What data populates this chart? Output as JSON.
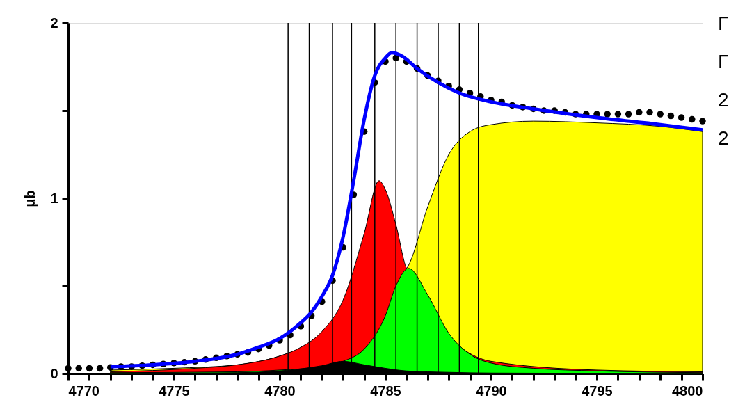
{
  "chart_data": {
    "type": "area",
    "ylabel": "μb",
    "xlim": [
      4770,
      4800
    ],
    "ylim": [
      0,
      2
    ],
    "xticks": [
      4770,
      {
        "value": 4771,
        "label": null
      },
      {
        "value": 4772,
        "label": null
      },
      {
        "value": 4773,
        "label": null
      },
      {
        "value": 4774,
        "label": null
      },
      4775,
      {
        "value": 4776,
        "label": null
      },
      {
        "value": 4777,
        "label": null
      },
      {
        "value": 4778,
        "label": null
      },
      {
        "value": 4779,
        "label": null
      },
      4780,
      {
        "value": 4781,
        "label": null
      },
      {
        "value": 4782,
        "label": null
      },
      {
        "value": 4783,
        "label": null
      },
      {
        "value": 4784,
        "label": null
      },
      4785,
      {
        "value": 4786,
        "label": null
      },
      {
        "value": 4787,
        "label": null
      },
      {
        "value": 4788,
        "label": null
      },
      {
        "value": 4789,
        "label": null
      },
      4790,
      {
        "value": 4791,
        "label": null
      },
      {
        "value": 4792,
        "label": null
      },
      {
        "value": 4793,
        "label": null
      },
      {
        "value": 4794,
        "label": null
      },
      4795,
      {
        "value": 4796,
        "label": null
      },
      {
        "value": 4797,
        "label": null
      },
      {
        "value": 4798,
        "label": null
      },
      {
        "value": 4799,
        "label": null
      },
      4800
    ],
    "yticks": [
      0,
      {
        "value": 0.5,
        "label": null
      },
      1,
      {
        "value": 1.5,
        "label": null
      },
      2
    ],
    "grid": false,
    "annotations": [
      "Γ",
      "Γ",
      "2",
      "2"
    ],
    "ref_lines": [
      {
        "axis": "x",
        "value": 4780.4,
        "color": "#000000"
      },
      {
        "axis": "x",
        "value": 4781.4,
        "color": "#000000"
      },
      {
        "axis": "x",
        "value": 4782.5,
        "color": "#000000"
      },
      {
        "axis": "x",
        "value": 4783.4,
        "color": "#000000"
      },
      {
        "axis": "x",
        "value": 4784.5,
        "color": "#000000"
      },
      {
        "axis": "x",
        "value": 4785.5,
        "color": "#000000"
      },
      {
        "axis": "x",
        "value": 4786.5,
        "color": "#000000"
      },
      {
        "axis": "x",
        "value": 4787.5,
        "color": "#000000"
      },
      {
        "axis": "x",
        "value": 4788.5,
        "color": "#000000"
      },
      {
        "axis": "x",
        "value": 4789.4,
        "color": "#000000"
      }
    ],
    "series": [
      {
        "color": "#ffff00",
        "x": [
          4772,
          4775,
          4778,
          4786,
          4787,
          4788,
          4789,
          4790,
          4792,
          4795,
          4798,
          4800
        ],
        "values": [
          0.02,
          0.03,
          0.05,
          0.6,
          0.95,
          1.25,
          1.38,
          1.42,
          1.44,
          1.43,
          1.41,
          1.38
        ]
      },
      {
        "color": "#ff0000",
        "x": [
          4772,
          4776,
          4778,
          4780,
          4781,
          4782,
          4783,
          4784,
          4784.7,
          4785,
          4785.5,
          4786,
          4790,
          4795,
          4800
        ],
        "values": [
          0.01,
          0.03,
          0.05,
          0.1,
          0.15,
          0.24,
          0.42,
          0.8,
          1.1,
          1.05,
          0.85,
          0.6,
          0.07,
          0.02,
          0.01
        ]
      },
      {
        "color": "#00ff00",
        "x": [
          4772,
          4778,
          4780,
          4782,
          4783,
          4784,
          4785,
          4785.5,
          4786.1,
          4787,
          4788,
          4789,
          4790,
          4792,
          4795,
          4800
        ],
        "values": [
          0.005,
          0.01,
          0.02,
          0.04,
          0.07,
          0.14,
          0.33,
          0.5,
          0.6,
          0.45,
          0.23,
          0.11,
          0.06,
          0.03,
          0.015,
          0.005
        ]
      },
      {
        "color": "#000000",
        "x": [
          4772,
          4778,
          4780,
          4782,
          4783,
          4784,
          4785,
          4786,
          4788,
          4790,
          4800
        ],
        "values": [
          0.0,
          0.005,
          0.015,
          0.045,
          0.07,
          0.05,
          0.03,
          0.015,
          0.007,
          0.003,
          0.0
        ]
      },
      {
        "type": "scatter",
        "color": "#000000",
        "marker": "circle",
        "x": [
          4770,
          4770.5,
          4771,
          4771.5,
          4772,
          4772.5,
          4773,
          4773.5,
          4774,
          4774.5,
          4775,
          4775.5,
          4776,
          4776.5,
          4777,
          4777.5,
          4778,
          4778.5,
          4779,
          4779.5,
          4780,
          4780.5,
          4781,
          4781.5,
          4782,
          4782.5,
          4783,
          4783.5,
          4784,
          4784.5,
          4785,
          4785.5,
          4786,
          4786.5,
          4787,
          4787.5,
          4788,
          4788.5,
          4789,
          4789.5,
          4790,
          4790.5,
          4791,
          4791.5,
          4792,
          4792.5,
          4793,
          4793.5,
          4794,
          4794.5,
          4795,
          4795.5,
          4796,
          4796.5,
          4797,
          4797.5,
          4798,
          4798.5,
          4799,
          4799.5,
          4800
        ],
        "values": [
          0.03,
          0.03,
          0.03,
          0.03,
          0.035,
          0.04,
          0.04,
          0.045,
          0.05,
          0.055,
          0.06,
          0.065,
          0.07,
          0.08,
          0.09,
          0.1,
          0.11,
          0.12,
          0.14,
          0.16,
          0.19,
          0.22,
          0.27,
          0.33,
          0.41,
          0.53,
          0.72,
          1.02,
          1.38,
          1.66,
          1.78,
          1.8,
          1.78,
          1.74,
          1.7,
          1.67,
          1.64,
          1.62,
          1.6,
          1.58,
          1.56,
          1.55,
          1.53,
          1.52,
          1.51,
          1.5,
          1.5,
          1.49,
          1.48,
          1.48,
          1.48,
          1.48,
          1.48,
          1.48,
          1.49,
          1.49,
          1.48,
          1.47,
          1.46,
          1.45,
          1.44
        ]
      },
      {
        "type": "line",
        "color": "#0000ff",
        "line_style": "solid",
        "x": [
          4772,
          4774,
          4776,
          4778,
          4779,
          4780,
          4780.5,
          4781,
          4781.5,
          4782,
          4782.5,
          4783,
          4783.5,
          4784,
          4784.5,
          4785,
          4785.3,
          4785.8,
          4786.5,
          4787.5,
          4788.5,
          4790,
          4792,
          4795,
          4798,
          4800
        ],
        "values": [
          0.04,
          0.05,
          0.07,
          0.11,
          0.15,
          0.2,
          0.24,
          0.29,
          0.35,
          0.44,
          0.56,
          0.78,
          1.1,
          1.45,
          1.7,
          1.8,
          1.83,
          1.81,
          1.74,
          1.66,
          1.6,
          1.55,
          1.51,
          1.46,
          1.42,
          1.39
        ]
      }
    ]
  }
}
